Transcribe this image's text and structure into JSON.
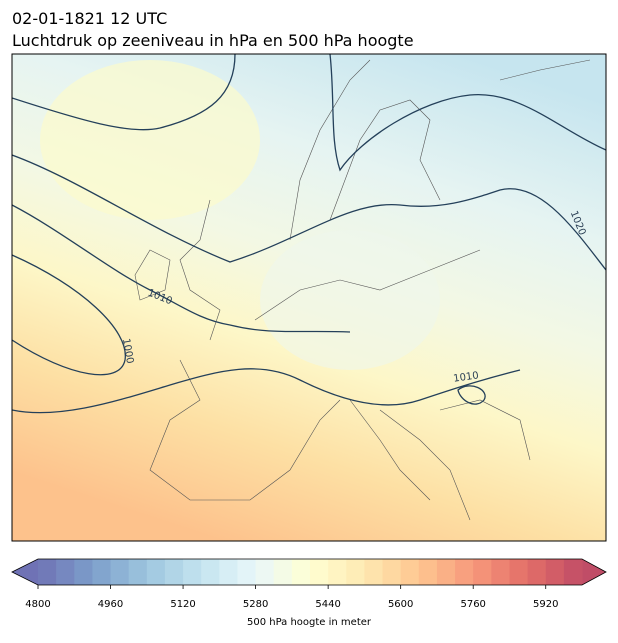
{
  "header": {
    "date": "02-01-1821 12 UTC",
    "description": "Luchtdruk op zeeniveau in hPa en 500 hPa hoogte"
  },
  "contour_labels": [
    1020,
    1010,
    1000,
    1010
  ],
  "colorbar": {
    "label": "500 hPa hoogte in meter",
    "lim": [
      4800,
      6000
    ],
    "step": 40,
    "ticks": [
      4800,
      4960,
      5120,
      5280,
      5440,
      5600,
      5760,
      5920
    ]
  }
}
